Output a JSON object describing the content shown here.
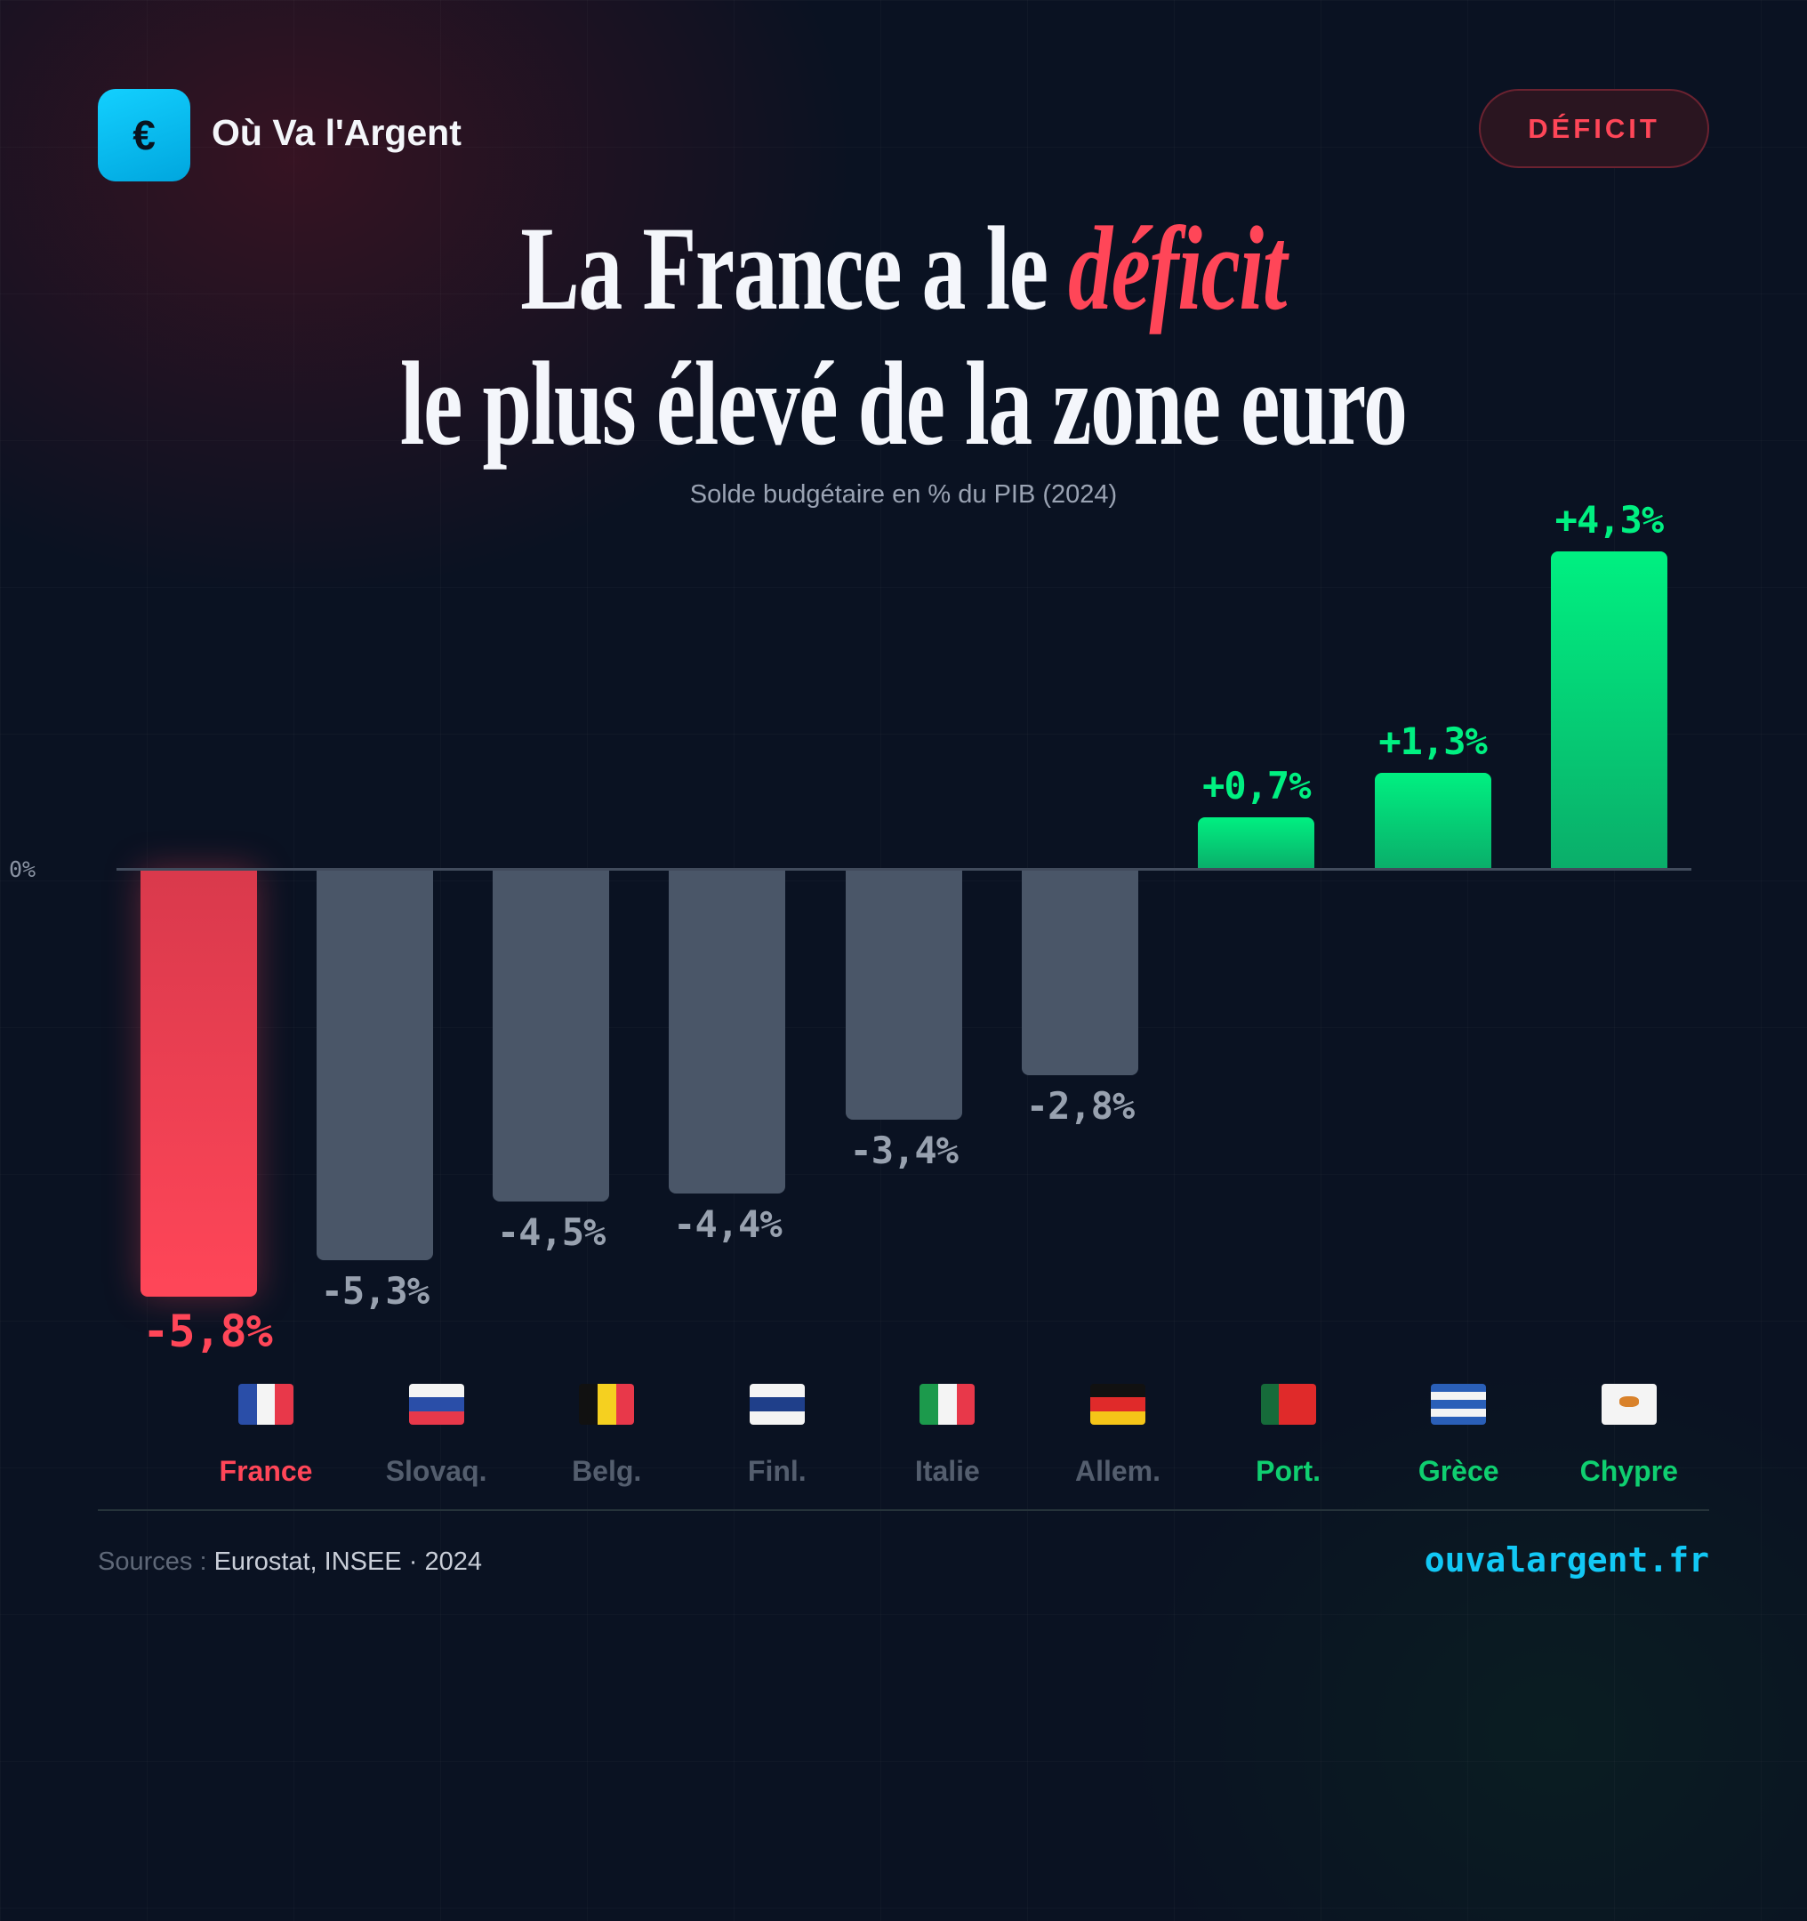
{
  "header": {
    "logo_symbol": "€",
    "brand": "Où Va l'Argent",
    "badge": "DÉFICIT"
  },
  "title": {
    "line1_prefix": "La France a le ",
    "line1_accent": "déficit",
    "line2": "le plus élevé de la zone euro"
  },
  "colors": {
    "accent_red": "#ff4658",
    "positive_green": "#00f081",
    "neutral_bar": "#4a5668",
    "site_cyan": "#12c8f5"
  },
  "chart_data": {
    "type": "bar",
    "subtitle": "Solde budgétaire en % du PIB (2024)",
    "zero_label": "0%",
    "categories": [
      "France",
      "Slovaq.",
      "Belg.",
      "Finl.",
      "Italie",
      "Allem.",
      "Port.",
      "Grèce",
      "Chypre"
    ],
    "values": [
      -5.8,
      -5.3,
      -4.5,
      -4.4,
      -3.4,
      -2.8,
      0.7,
      1.3,
      4.3
    ],
    "value_labels": [
      "-5,8%",
      "-5,3%",
      "-4,5%",
      "-4,4%",
      "-3,4%",
      "-2,8%",
      "+0,7%",
      "+1,3%",
      "+4,3%"
    ],
    "flags": [
      "flag-france",
      "flag-slovakia",
      "flag-belgium",
      "flag-finland",
      "flag-italy",
      "flag-germany",
      "flag-portugal",
      "flag-greece",
      "flag-cyprus"
    ],
    "highlight": "France",
    "ylim": [
      -5.8,
      4.3
    ],
    "grid": false
  },
  "footer": {
    "sources_label": "Sources : ",
    "sources": "Eurostat, INSEE · 2024",
    "site": "ouvalargent.fr"
  }
}
